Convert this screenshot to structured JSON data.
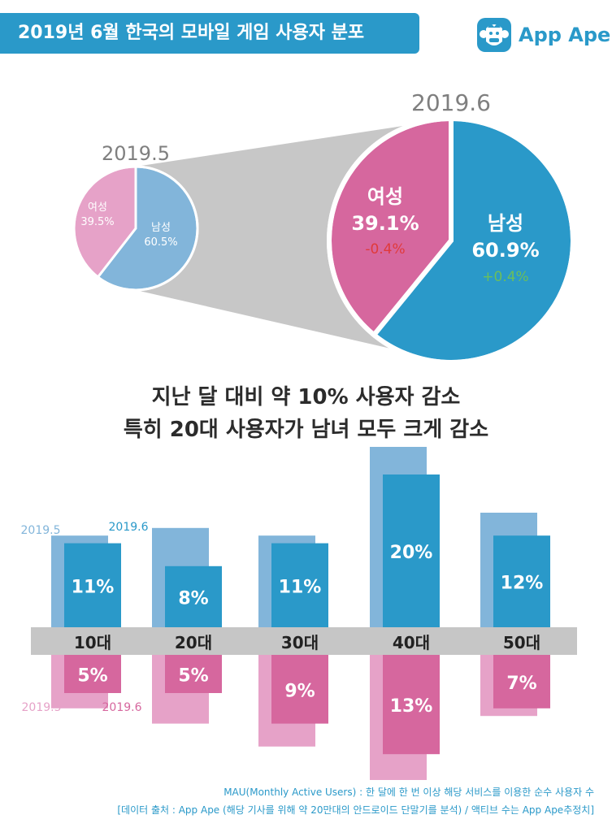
{
  "title": "2019년 6월 한국의 모바일 게임 사용자 분포",
  "logo": {
    "name": "App Ape",
    "icon": "ape-face-icon"
  },
  "colors": {
    "brand": "#2a99c9",
    "male_current": "#2a99c9",
    "male_prev": "#82b5da",
    "female_current": "#d6679e",
    "female_prev": "#e6a2c8",
    "axis_band": "#c6c6c6",
    "decrease": "#e03a3a",
    "increase": "#6cbf5a"
  },
  "headline": {
    "line1": "지난 달 대비 약 10% 사용자 감소",
    "line2": "특히 20대 사용자가 남녀 모두 크게 감소"
  },
  "footnotes": {
    "line1": "MAU(Monthly Active Users) : 한 달에 한 번 이상 해당 서비스를 이용한 순수 사용자 수",
    "line2": "[데이터 출처 : App Ape (해당 기사를 위해 약 20만대의 안드로이드 단말기를 분석) / 액티브 수는 App Ape추정치]"
  },
  "chart_data": [
    {
      "type": "pie",
      "title": "2019.5",
      "slices": [
        {
          "label": "남성",
          "value": 60.5,
          "display": "60.5%"
        },
        {
          "label": "여성",
          "value": 39.5,
          "display": "39.5%"
        }
      ]
    },
    {
      "type": "pie",
      "title": "2019.6",
      "slices": [
        {
          "label": "남성",
          "value": 60.9,
          "display": "60.9%",
          "change": "+0.4%"
        },
        {
          "label": "여성",
          "value": 39.1,
          "display": "39.1%",
          "change": "-0.4%"
        }
      ]
    },
    {
      "type": "bar",
      "categories": [
        "10대",
        "20대",
        "30대",
        "40대",
        "50대"
      ],
      "series": [
        {
          "name": "2019.5",
          "group": "male",
          "values": [
            12,
            13,
            12,
            24,
            15
          ]
        },
        {
          "name": "2019.6",
          "group": "male",
          "values": [
            11,
            8,
            11,
            20,
            12
          ],
          "labels": [
            "11%",
            "8%",
            "11%",
            "20%",
            "12%"
          ]
        },
        {
          "name": "2019.5",
          "group": "female",
          "values": [
            7,
            9,
            12,
            18,
            8
          ]
        },
        {
          "name": "2019.6",
          "group": "female",
          "values": [
            5,
            5,
            9,
            13,
            7
          ],
          "labels": [
            "5%",
            "5%",
            "9%",
            "13%",
            "7%"
          ]
        }
      ]
    }
  ]
}
